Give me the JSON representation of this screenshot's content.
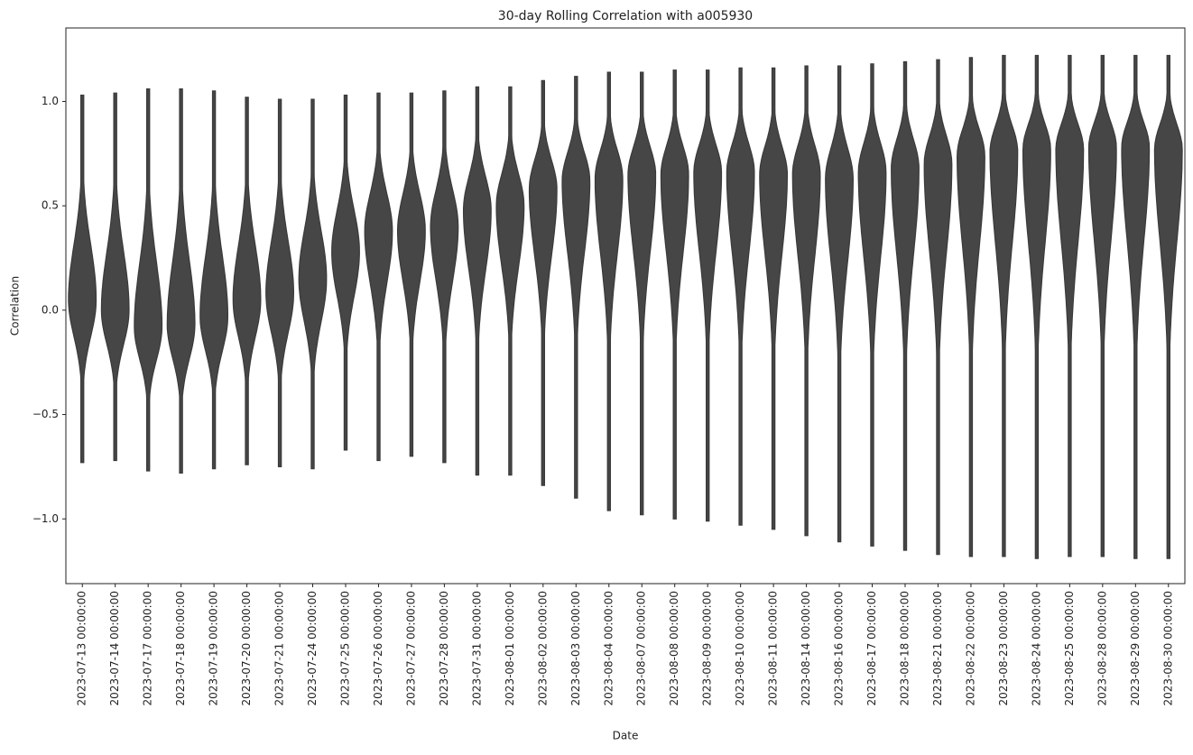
{
  "chart_data": {
    "type": "violin",
    "title": "30-day Rolling Correlation with a005930",
    "xlabel": "Date",
    "ylabel": "Correlation",
    "categories": [
      "2023-07-13 00:00:00",
      "2023-07-14 00:00:00",
      "2023-07-17 00:00:00",
      "2023-07-18 00:00:00",
      "2023-07-19 00:00:00",
      "2023-07-20 00:00:00",
      "2023-07-21 00:00:00",
      "2023-07-24 00:00:00",
      "2023-07-25 00:00:00",
      "2023-07-26 00:00:00",
      "2023-07-27 00:00:00",
      "2023-07-28 00:00:00",
      "2023-07-31 00:00:00",
      "2023-08-01 00:00:00",
      "2023-08-02 00:00:00",
      "2023-08-03 00:00:00",
      "2023-08-04 00:00:00",
      "2023-08-07 00:00:00",
      "2023-08-08 00:00:00",
      "2023-08-09 00:00:00",
      "2023-08-10 00:00:00",
      "2023-08-11 00:00:00",
      "2023-08-14 00:00:00",
      "2023-08-16 00:00:00",
      "2023-08-17 00:00:00",
      "2023-08-18 00:00:00",
      "2023-08-21 00:00:00",
      "2023-08-22 00:00:00",
      "2023-08-23 00:00:00",
      "2023-08-24 00:00:00",
      "2023-08-25 00:00:00",
      "2023-08-28 00:00:00",
      "2023-08-29 00:00:00",
      "2023-08-30 00:00:00"
    ],
    "max": [
      1.03,
      1.04,
      1.06,
      1.06,
      1.05,
      1.02,
      1.01,
      1.01,
      1.03,
      1.04,
      1.04,
      1.05,
      1.07,
      1.07,
      1.1,
      1.12,
      1.14,
      1.14,
      1.15,
      1.15,
      1.16,
      1.16,
      1.17,
      1.17,
      1.18,
      1.19,
      1.2,
      1.21,
      1.22,
      1.22,
      1.22,
      1.22,
      1.22,
      1.22
    ],
    "median": [
      0.05,
      0.0,
      -0.08,
      -0.07,
      -0.03,
      0.05,
      0.08,
      0.15,
      0.28,
      0.38,
      0.38,
      0.4,
      0.48,
      0.5,
      0.58,
      0.62,
      0.63,
      0.65,
      0.65,
      0.66,
      0.66,
      0.65,
      0.65,
      0.63,
      0.66,
      0.68,
      0.7,
      0.74,
      0.76,
      0.77,
      0.77,
      0.78,
      0.78,
      0.77
    ],
    "min": [
      -0.73,
      -0.72,
      -0.77,
      -0.78,
      -0.76,
      -0.74,
      -0.75,
      -0.76,
      -0.67,
      -0.72,
      -0.7,
      -0.73,
      -0.79,
      -0.79,
      -0.84,
      -0.9,
      -0.96,
      -0.98,
      -1.0,
      -1.01,
      -1.03,
      -1.05,
      -1.08,
      -1.11,
      -1.13,
      -1.15,
      -1.17,
      -1.18,
      -1.18,
      -1.19,
      -1.18,
      -1.18,
      -1.19,
      -1.19
    ],
    "color": "#464646",
    "ylim": [
      -1.31,
      1.352
    ],
    "yticks": [
      {
        "value": -1.0,
        "label": "−1.0"
      },
      {
        "value": -0.5,
        "label": "−0.5"
      },
      {
        "value": 0,
        "label": "0.0"
      },
      {
        "value": 0.5,
        "label": "0.5"
      },
      {
        "value": 1.0,
        "label": "1.0"
      }
    ]
  }
}
